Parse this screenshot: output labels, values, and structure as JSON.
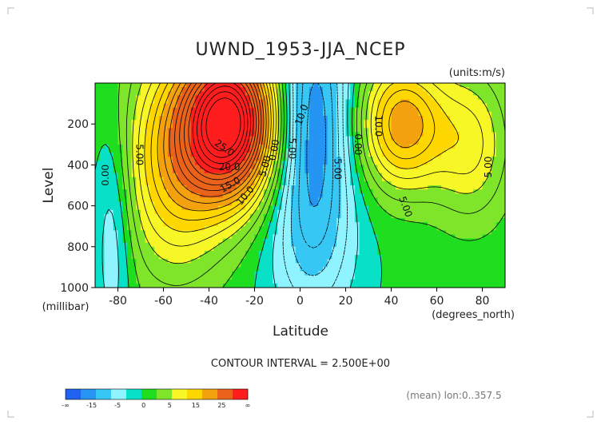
{
  "chart_data": {
    "type": "contour",
    "title": "UWND_1953-JJA_NCEP",
    "units_label": "(units:m/s)",
    "xlabel": "Latitude",
    "x_units_label": "(degrees_north)",
    "ylabel": "Level",
    "y_units_label": "(millibar)",
    "xlim": [
      -90,
      90
    ],
    "ylim": [
      1000,
      0
    ],
    "x_ticks": [
      -80,
      -60,
      -40,
      -20,
      0,
      20,
      40,
      60,
      80
    ],
    "y_ticks": [
      200,
      400,
      600,
      800,
      1000
    ],
    "contour_interval": 2.5,
    "contour_interval_label": "CONTOUR INTERVAL = 2.500E+00",
    "contour_labels": [
      {
        "lat": -84,
        "lev": 450,
        "text": "0.00",
        "rotate": -90
      },
      {
        "lat": -72,
        "lev": 350,
        "text": "5.00",
        "rotate": 90
      },
      {
        "lat": -34,
        "lev": 330,
        "text": "25.0",
        "rotate": 35
      },
      {
        "lat": -31,
        "lev": 425,
        "text": "20.0",
        "rotate": 0
      },
      {
        "lat": -30,
        "lev": 510,
        "text": "15.0",
        "rotate": -30
      },
      {
        "lat": -23,
        "lev": 560,
        "text": "10.0",
        "rotate": -50
      },
      {
        "lat": -14,
        "lev": 410,
        "text": "5.00",
        "rotate": -75
      },
      {
        "lat": -10,
        "lev": 330,
        "text": "0.00",
        "rotate": -80
      },
      {
        "lat": -5,
        "lev": 320,
        "text": "5.00",
        "rotate": 90
      },
      {
        "lat": 2,
        "lev": 160,
        "text": "10.0",
        "rotate": -70
      },
      {
        "lat": 15,
        "lev": 420,
        "text": "5.00",
        "rotate": 90
      },
      {
        "lat": 24,
        "lev": 300,
        "text": "0.00",
        "rotate": 90
      },
      {
        "lat": 33,
        "lev": 210,
        "text": "10.0",
        "rotate": 90
      },
      {
        "lat": 45,
        "lev": 610,
        "text": "5.00",
        "rotate": 70
      },
      {
        "lat": 84,
        "lev": 410,
        "text": "5.00",
        "rotate": -90
      }
    ],
    "colorbar": {
      "bins": [
        "#1f63f0",
        "#2594f2",
        "#36c7f5",
        "#8ff4ff",
        "#08e1c8",
        "#1fdd1f",
        "#7ee52b",
        "#f7f727",
        "#ffd700",
        "#f3a10f",
        "#ea631a",
        "#ff1d1d"
      ],
      "labels": [
        "-∞",
        "-15",
        "-5",
        "0",
        "5",
        "15",
        "25",
        "∞"
      ]
    },
    "features": [
      {
        "name": "southern-hemisphere-westerly-jet",
        "max_approx": 45,
        "lat": -30,
        "lev": 200
      },
      {
        "name": "tropical-easterly-band",
        "min_approx": -15,
        "lat": 5,
        "lev": 100
      },
      {
        "name": "northern-hemisphere-westerly-jet",
        "max_approx": 22.5,
        "lat": 44,
        "lev": 200
      }
    ]
  },
  "footer": {
    "stats_label": "(mean) lon:0..357.5"
  }
}
